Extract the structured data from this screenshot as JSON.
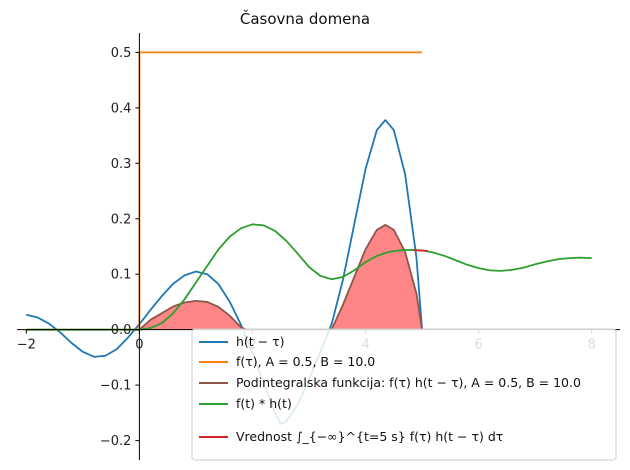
{
  "chart_data": {
    "type": "line",
    "title": "Časovna domena",
    "xlim": [
      -2.2,
      8.5
    ],
    "ylim": [
      -0.235,
      0.535
    ],
    "x_ticks": [
      -2,
      0,
      2,
      4,
      6,
      8
    ],
    "y_ticks": [
      -0.2,
      -0.1,
      0.0,
      0.1,
      0.2,
      0.3,
      0.4,
      0.5
    ],
    "x_tick_labels": [
      "−2",
      "0",
      "2",
      "4",
      "6",
      "8"
    ],
    "y_tick_labels": [
      "−0.2",
      "−0.1",
      "0.0",
      "0.1",
      "0.2",
      "0.3",
      "0.4",
      "0.5"
    ],
    "grid": false,
    "legend_position": "lower-center",
    "series": [
      {
        "name": "h(t − τ)",
        "color": "#1f77b4",
        "points": [
          [
            -2.0,
            0.027
          ],
          [
            -1.8,
            0.022
          ],
          [
            -1.6,
            0.011
          ],
          [
            -1.4,
            -0.005
          ],
          [
            -1.2,
            -0.024
          ],
          [
            -1.0,
            -0.04
          ],
          [
            -0.8,
            -0.049
          ],
          [
            -0.6,
            -0.047
          ],
          [
            -0.4,
            -0.035
          ],
          [
            -0.2,
            -0.014
          ],
          [
            0.0,
            0.01
          ],
          [
            0.2,
            0.036
          ],
          [
            0.4,
            0.061
          ],
          [
            0.6,
            0.083
          ],
          [
            0.8,
            0.098
          ],
          [
            1.0,
            0.105
          ],
          [
            1.2,
            0.1
          ],
          [
            1.4,
            0.082
          ],
          [
            1.6,
            0.05
          ],
          [
            1.8,
            0.008
          ],
          [
            2.0,
            -0.042
          ],
          [
            2.2,
            -0.097
          ],
          [
            2.4,
            -0.15
          ],
          [
            2.5,
            -0.17
          ],
          [
            2.6,
            -0.165
          ],
          [
            2.8,
            -0.135
          ],
          [
            3.0,
            -0.09
          ],
          [
            3.2,
            -0.04
          ],
          [
            3.4,
            0.01
          ],
          [
            3.6,
            0.09
          ],
          [
            3.8,
            0.19
          ],
          [
            4.0,
            0.29
          ],
          [
            4.2,
            0.36
          ],
          [
            4.35,
            0.378
          ],
          [
            4.5,
            0.36
          ],
          [
            4.7,
            0.28
          ],
          [
            4.9,
            0.13
          ],
          [
            5.0,
            0.0
          ]
        ]
      },
      {
        "name": "f(τ), A = 0.5, B = 10.0",
        "color": "#ff7f0e",
        "points": [
          [
            -2.0,
            0.0
          ],
          [
            0.0,
            0.0
          ],
          [
            0.0,
            0.5
          ],
          [
            5.0,
            0.5
          ]
        ]
      },
      {
        "name": "Podintegralska funkcija: f(τ) h(t − τ), A = 0.5, B = 10.0",
        "color": "#8c564b",
        "fill_color": "#ff7f7f",
        "points": [
          [
            0.0,
            0.0
          ],
          [
            0.2,
            0.018
          ],
          [
            0.4,
            0.03
          ],
          [
            0.6,
            0.042
          ],
          [
            0.8,
            0.049
          ],
          [
            1.0,
            0.052
          ],
          [
            1.2,
            0.05
          ],
          [
            1.4,
            0.041
          ],
          [
            1.6,
            0.025
          ],
          [
            1.8,
            0.004
          ],
          [
            1.9,
            0.0
          ],
          [
            3.4,
            0.0
          ],
          [
            3.6,
            0.045
          ],
          [
            3.8,
            0.095
          ],
          [
            4.0,
            0.145
          ],
          [
            4.2,
            0.18
          ],
          [
            4.35,
            0.189
          ],
          [
            4.5,
            0.18
          ],
          [
            4.7,
            0.14
          ],
          [
            4.9,
            0.065
          ],
          [
            5.0,
            0.0
          ]
        ]
      },
      {
        "name": "f(t) * h(t)",
        "color": "#2ca02c",
        "points": [
          [
            -2.0,
            0.0
          ],
          [
            0.0,
            0.0
          ],
          [
            0.2,
            0.003
          ],
          [
            0.4,
            0.012
          ],
          [
            0.6,
            0.03
          ],
          [
            0.8,
            0.055
          ],
          [
            1.0,
            0.085
          ],
          [
            1.2,
            0.115
          ],
          [
            1.4,
            0.145
          ],
          [
            1.6,
            0.168
          ],
          [
            1.8,
            0.183
          ],
          [
            2.0,
            0.19
          ],
          [
            2.2,
            0.188
          ],
          [
            2.4,
            0.178
          ],
          [
            2.6,
            0.16
          ],
          [
            2.8,
            0.137
          ],
          [
            3.0,
            0.113
          ],
          [
            3.2,
            0.097
          ],
          [
            3.4,
            0.091
          ],
          [
            3.6,
            0.095
          ],
          [
            3.8,
            0.107
          ],
          [
            4.0,
            0.122
          ],
          [
            4.2,
            0.133
          ],
          [
            4.4,
            0.14
          ],
          [
            4.6,
            0.143
          ],
          [
            4.8,
            0.144
          ],
          [
            5.0,
            0.143
          ],
          [
            5.2,
            0.139
          ],
          [
            5.4,
            0.133
          ],
          [
            5.6,
            0.125
          ],
          [
            5.8,
            0.117
          ],
          [
            6.0,
            0.111
          ],
          [
            6.2,
            0.107
          ],
          [
            6.4,
            0.106
          ],
          [
            6.6,
            0.108
          ],
          [
            6.8,
            0.112
          ],
          [
            7.0,
            0.118
          ],
          [
            7.2,
            0.123
          ],
          [
            7.4,
            0.127
          ],
          [
            7.6,
            0.129
          ],
          [
            7.8,
            0.13
          ],
          [
            8.0,
            0.129
          ]
        ]
      },
      {
        "name": "Vrednost ∫_{−∞}^{t=5 s} f(τ) h(t − τ) dτ",
        "color": "#d62728",
        "points": [
          [
            4.85,
            0.1435
          ],
          [
            5.1,
            0.142
          ]
        ]
      }
    ]
  }
}
